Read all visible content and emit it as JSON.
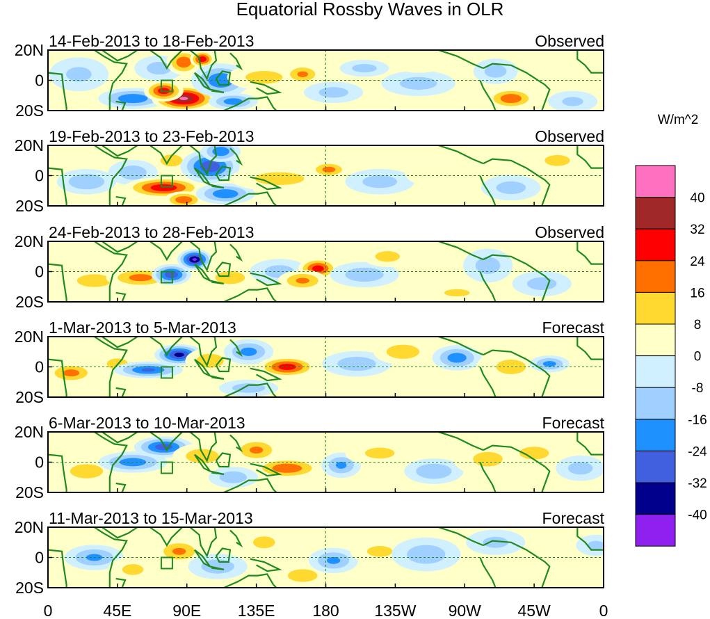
{
  "chart_data": {
    "type": "heatmap",
    "title": "Equatorial Rossby Waves in OLR",
    "units": "W/m^2",
    "x_ticks": [
      "0",
      "45E",
      "90E",
      "135E",
      "180",
      "135W",
      "90W",
      "45W",
      "0"
    ],
    "x_range_deg": [
      0,
      360
    ],
    "y_ticks": [
      "20N",
      "0",
      "20S"
    ],
    "y_range_deg": [
      -20,
      20
    ],
    "colorbar": {
      "levels": [
        "40",
        "32",
        "24",
        "16",
        "8",
        "0",
        "-8",
        "-16",
        "-24",
        "-32",
        "-40"
      ],
      "colors": [
        "#ff70c0",
        "#a02828",
        "#ff0000",
        "#ff7000",
        "#ffd830",
        "#ffffc8",
        "#d0f0ff",
        "#a0d0ff",
        "#1e90ff",
        "#4060e0",
        "#00008c",
        "#9020f0"
      ]
    },
    "panels": [
      {
        "period": "14-Feb-2013 to 18-Feb-2013",
        "kind": "Observed",
        "features": [
          {
            "lon": 55,
            "lat": -12,
            "val": -22,
            "sx": 14,
            "sy": 5
          },
          {
            "lon": 72,
            "lat": 8,
            "val": -10,
            "sx": 10,
            "sy": 6
          },
          {
            "lon": 88,
            "lat": -12,
            "val": 40,
            "sx": 13,
            "sy": 6
          },
          {
            "lon": 75,
            "lat": -7,
            "val": 28,
            "sx": 8,
            "sy": 5
          },
          {
            "lon": 88,
            "lat": 12,
            "val": 22,
            "sx": 7,
            "sy": 6
          },
          {
            "lon": 100,
            "lat": 14,
            "val": 30,
            "sx": 5,
            "sy": 4
          },
          {
            "lon": 112,
            "lat": 0,
            "val": -22,
            "sx": 12,
            "sy": 8
          },
          {
            "lon": 120,
            "lat": -14,
            "val": -20,
            "sx": 10,
            "sy": 4
          },
          {
            "lon": 140,
            "lat": 2,
            "val": 10,
            "sx": 15,
            "sy": 6
          },
          {
            "lon": 165,
            "lat": 4,
            "val": 16,
            "sx": 8,
            "sy": 5
          },
          {
            "lon": 185,
            "lat": -8,
            "val": -10,
            "sx": 12,
            "sy": 5
          },
          {
            "lon": 205,
            "lat": 8,
            "val": -10,
            "sx": 10,
            "sy": 4
          },
          {
            "lon": 240,
            "lat": -2,
            "val": -10,
            "sx": 15,
            "sy": 6
          },
          {
            "lon": 240,
            "lat": 12,
            "val": 6,
            "sx": 12,
            "sy": 5
          },
          {
            "lon": 300,
            "lat": -12,
            "val": 22,
            "sx": 10,
            "sy": 5
          },
          {
            "lon": 290,
            "lat": 6,
            "val": -10,
            "sx": 9,
            "sy": 6
          },
          {
            "lon": 20,
            "lat": 4,
            "val": -8,
            "sx": 12,
            "sy": 8
          },
          {
            "lon": 340,
            "lat": -14,
            "val": -8,
            "sx": 10,
            "sy": 5
          }
        ]
      },
      {
        "period": "19-Feb-2013 to 23-Feb-2013",
        "kind": "Observed",
        "features": [
          {
            "lon": 25,
            "lat": -4,
            "val": -14,
            "sx": 12,
            "sy": 6
          },
          {
            "lon": 55,
            "lat": 2,
            "val": -12,
            "sx": 10,
            "sy": 6
          },
          {
            "lon": 75,
            "lat": -8,
            "val": 30,
            "sx": 16,
            "sy": 5
          },
          {
            "lon": 88,
            "lat": -16,
            "val": 22,
            "sx": 8,
            "sy": 4
          },
          {
            "lon": 80,
            "lat": 10,
            "val": 12,
            "sx": 8,
            "sy": 5
          },
          {
            "lon": 105,
            "lat": 6,
            "val": -30,
            "sx": 12,
            "sy": 8
          },
          {
            "lon": 112,
            "lat": 16,
            "val": -22,
            "sx": 8,
            "sy": 5
          },
          {
            "lon": 115,
            "lat": -12,
            "val": -22,
            "sx": 12,
            "sy": 5
          },
          {
            "lon": 150,
            "lat": -2,
            "val": 10,
            "sx": 20,
            "sy": 6
          },
          {
            "lon": 182,
            "lat": 4,
            "val": 18,
            "sx": 8,
            "sy": 4
          },
          {
            "lon": 215,
            "lat": -4,
            "val": -10,
            "sx": 14,
            "sy": 6
          },
          {
            "lon": 260,
            "lat": 2,
            "val": 7,
            "sx": 18,
            "sy": 8
          },
          {
            "lon": 300,
            "lat": -8,
            "val": -10,
            "sx": 12,
            "sy": 6
          },
          {
            "lon": 330,
            "lat": 10,
            "val": 8,
            "sx": 12,
            "sy": 6
          }
        ]
      },
      {
        "period": "24-Feb-2013 to 28-Feb-2013",
        "kind": "Observed",
        "features": [
          {
            "lon": 30,
            "lat": -6,
            "val": 10,
            "sx": 14,
            "sy": 6
          },
          {
            "lon": 60,
            "lat": -4,
            "val": 18,
            "sx": 14,
            "sy": 5
          },
          {
            "lon": 80,
            "lat": -2,
            "val": -30,
            "sx": 8,
            "sy": 5
          },
          {
            "lon": 95,
            "lat": 8,
            "val": -40,
            "sx": 7,
            "sy": 5
          },
          {
            "lon": 118,
            "lat": -4,
            "val": 10,
            "sx": 12,
            "sy": 6
          },
          {
            "lon": 150,
            "lat": 0,
            "val": -10,
            "sx": 12,
            "sy": 6
          },
          {
            "lon": 175,
            "lat": 2,
            "val": 28,
            "sx": 8,
            "sy": 5
          },
          {
            "lon": 165,
            "lat": -6,
            "val": 16,
            "sx": 10,
            "sy": 5
          },
          {
            "lon": 205,
            "lat": -2,
            "val": -12,
            "sx": 14,
            "sy": 6
          },
          {
            "lon": 220,
            "lat": 10,
            "val": 10,
            "sx": 10,
            "sy": 5
          },
          {
            "lon": 285,
            "lat": 4,
            "val": -10,
            "sx": 10,
            "sy": 8
          },
          {
            "lon": 265,
            "lat": -14,
            "val": 8,
            "sx": 12,
            "sy": 4
          },
          {
            "lon": 320,
            "lat": -8,
            "val": -10,
            "sx": 12,
            "sy": 6
          }
        ]
      },
      {
        "period": "1-Mar-2013 to 5-Mar-2013",
        "kind": "Forecast",
        "features": [
          {
            "lon": 15,
            "lat": -4,
            "val": 18,
            "sx": 10,
            "sy": 5
          },
          {
            "lon": 45,
            "lat": 2,
            "val": 8,
            "sx": 10,
            "sy": 6
          },
          {
            "lon": 65,
            "lat": -2,
            "val": -24,
            "sx": 14,
            "sy": 4
          },
          {
            "lon": 85,
            "lat": 8,
            "val": -34,
            "sx": 10,
            "sy": 5
          },
          {
            "lon": 105,
            "lat": 4,
            "val": 12,
            "sx": 10,
            "sy": 6
          },
          {
            "lon": 130,
            "lat": 10,
            "val": -18,
            "sx": 10,
            "sy": 6
          },
          {
            "lon": 155,
            "lat": 0,
            "val": 28,
            "sx": 12,
            "sy": 5
          },
          {
            "lon": 130,
            "lat": -14,
            "val": -12,
            "sx": 12,
            "sy": 4
          },
          {
            "lon": 200,
            "lat": 2,
            "val": -12,
            "sx": 14,
            "sy": 6
          },
          {
            "lon": 230,
            "lat": 10,
            "val": 12,
            "sx": 12,
            "sy": 6
          },
          {
            "lon": 265,
            "lat": 6,
            "val": -20,
            "sx": 10,
            "sy": 6
          },
          {
            "lon": 300,
            "lat": 0,
            "val": 8,
            "sx": 14,
            "sy": 8
          },
          {
            "lon": 325,
            "lat": 2,
            "val": -18,
            "sx": 8,
            "sy": 4
          }
        ]
      },
      {
        "period": "6-Mar-2013 to 10-Mar-2013",
        "kind": "Forecast",
        "features": [
          {
            "lon": 25,
            "lat": -6,
            "val": 12,
            "sx": 12,
            "sy": 6
          },
          {
            "lon": 55,
            "lat": 0,
            "val": -20,
            "sx": 14,
            "sy": 5
          },
          {
            "lon": 75,
            "lat": 10,
            "val": -28,
            "sx": 12,
            "sy": 5
          },
          {
            "lon": 100,
            "lat": 4,
            "val": 12,
            "sx": 12,
            "sy": 6
          },
          {
            "lon": 135,
            "lat": 8,
            "val": 16,
            "sx": 10,
            "sy": 6
          },
          {
            "lon": 155,
            "lat": -4,
            "val": 22,
            "sx": 14,
            "sy": 5
          },
          {
            "lon": 120,
            "lat": -10,
            "val": -12,
            "sx": 10,
            "sy": 5
          },
          {
            "lon": 190,
            "lat": -2,
            "val": -16,
            "sx": 8,
            "sy": 6
          },
          {
            "lon": 215,
            "lat": 6,
            "val": 8,
            "sx": 14,
            "sy": 6
          },
          {
            "lon": 250,
            "lat": -6,
            "val": -14,
            "sx": 12,
            "sy": 6
          },
          {
            "lon": 285,
            "lat": 2,
            "val": 8,
            "sx": 14,
            "sy": 8
          },
          {
            "lon": 315,
            "lat": 6,
            "val": 14,
            "sx": 10,
            "sy": 5
          },
          {
            "lon": 345,
            "lat": -4,
            "val": -10,
            "sx": 10,
            "sy": 6
          }
        ]
      },
      {
        "period": "11-Mar-2013 to 15-Mar-2013",
        "kind": "Forecast",
        "features": [
          {
            "lon": 30,
            "lat": 0,
            "val": -16,
            "sx": 12,
            "sy": 6
          },
          {
            "lon": 55,
            "lat": -8,
            "val": 8,
            "sx": 10,
            "sy": 6
          },
          {
            "lon": 85,
            "lat": 4,
            "val": 16,
            "sx": 10,
            "sy": 6
          },
          {
            "lon": 110,
            "lat": -6,
            "val": -12,
            "sx": 12,
            "sy": 6
          },
          {
            "lon": 140,
            "lat": 10,
            "val": 12,
            "sx": 8,
            "sy": 5
          },
          {
            "lon": 165,
            "lat": -12,
            "val": 14,
            "sx": 10,
            "sy": 5
          },
          {
            "lon": 185,
            "lat": -2,
            "val": -16,
            "sx": 10,
            "sy": 6
          },
          {
            "lon": 215,
            "lat": 4,
            "val": 8,
            "sx": 12,
            "sy": 6
          },
          {
            "lon": 245,
            "lat": 2,
            "val": -12,
            "sx": 14,
            "sy": 8
          },
          {
            "lon": 290,
            "lat": 10,
            "val": -8,
            "sx": 12,
            "sy": 6
          },
          {
            "lon": 325,
            "lat": -4,
            "val": 6,
            "sx": 14,
            "sy": 8
          },
          {
            "lon": 355,
            "lat": 8,
            "val": -8,
            "sx": 8,
            "sy": 5
          }
        ]
      }
    ]
  }
}
